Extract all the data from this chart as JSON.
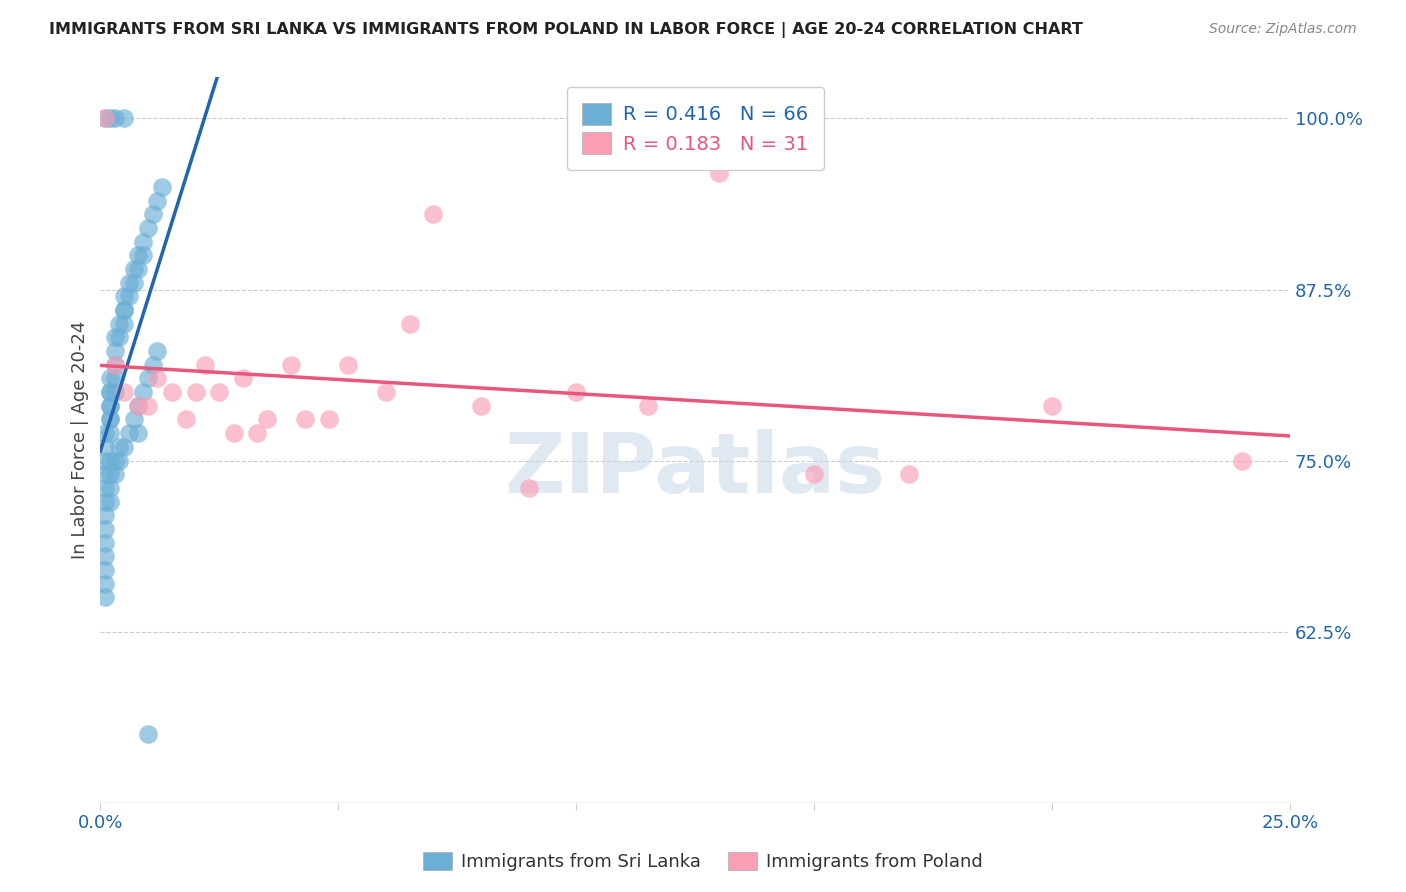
{
  "title": "IMMIGRANTS FROM SRI LANKA VS IMMIGRANTS FROM POLAND IN LABOR FORCE | AGE 20-24 CORRELATION CHART",
  "source": "Source: ZipAtlas.com",
  "xlabel": "",
  "ylabel": "In Labor Force | Age 20-24",
  "xlim": [
    0.0,
    0.25
  ],
  "ylim": [
    0.5,
    1.03
  ],
  "xticks": [
    0.0,
    0.05,
    0.1,
    0.15,
    0.2,
    0.25
  ],
  "xticklabels": [
    "0.0%",
    "",
    "",
    "",
    "",
    "25.0%"
  ],
  "yticks_right": [
    0.625,
    0.75,
    0.875,
    1.0
  ],
  "ytick_right_labels": [
    "62.5%",
    "75.0%",
    "87.5%",
    "100.0%"
  ],
  "sri_lanka_R": 0.416,
  "sri_lanka_N": 66,
  "poland_R": 0.183,
  "poland_N": 31,
  "sri_lanka_color": "#6baed6",
  "poland_color": "#fa9fb5",
  "sri_lanka_color_edge": "#6baed6",
  "poland_color_edge": "#fa9fb5",
  "sri_lanka_line_color": "#2166ac",
  "poland_line_color": "#e8567c",
  "background_color": "#ffffff",
  "watermark_text": "ZIPatlas",
  "watermark_color": "#c8d8e8",
  "sri_lanka_x": [
    0.001,
    0.001,
    0.001,
    0.001,
    0.001,
    0.001,
    0.001,
    0.001,
    0.001,
    0.001,
    0.001,
    0.001,
    0.001,
    0.002,
    0.002,
    0.002,
    0.002,
    0.002,
    0.002,
    0.002,
    0.002,
    0.002,
    0.002,
    0.002,
    0.002,
    0.003,
    0.003,
    0.003,
    0.003,
    0.003,
    0.003,
    0.003,
    0.004,
    0.004,
    0.004,
    0.004,
    0.005,
    0.005,
    0.005,
    0.005,
    0.005,
    0.006,
    0.006,
    0.006,
    0.007,
    0.007,
    0.007,
    0.008,
    0.008,
    0.008,
    0.009,
    0.009,
    0.009,
    0.01,
    0.01,
    0.011,
    0.011,
    0.012,
    0.012,
    0.013,
    0.005,
    0.003,
    0.002,
    0.001,
    0.008,
    0.01
  ],
  "sri_lanka_y": [
    0.75,
    0.74,
    0.73,
    0.72,
    0.71,
    0.7,
    0.69,
    0.68,
    0.67,
    0.66,
    0.65,
    0.76,
    0.77,
    0.77,
    0.78,
    0.78,
    0.79,
    0.79,
    0.8,
    0.8,
    0.81,
    0.75,
    0.74,
    0.73,
    0.72,
    0.8,
    0.81,
    0.82,
    0.83,
    0.84,
    0.75,
    0.74,
    0.84,
    0.85,
    0.76,
    0.75,
    0.85,
    0.86,
    0.86,
    0.87,
    0.76,
    0.87,
    0.88,
    0.77,
    0.88,
    0.89,
    0.78,
    0.89,
    0.9,
    0.79,
    0.9,
    0.91,
    0.8,
    0.92,
    0.81,
    0.93,
    0.82,
    0.94,
    0.83,
    0.95,
    1.0,
    1.0,
    1.0,
    1.0,
    0.77,
    0.55
  ],
  "poland_x": [
    0.001,
    0.003,
    0.005,
    0.008,
    0.01,
    0.012,
    0.015,
    0.018,
    0.02,
    0.022,
    0.025,
    0.028,
    0.03,
    0.033,
    0.035,
    0.04,
    0.043,
    0.048,
    0.052,
    0.06,
    0.065,
    0.07,
    0.08,
    0.09,
    0.1,
    0.115,
    0.13,
    0.15,
    0.17,
    0.2,
    0.24
  ],
  "poland_y": [
    1.0,
    0.82,
    0.8,
    0.79,
    0.79,
    0.81,
    0.8,
    0.78,
    0.8,
    0.82,
    0.8,
    0.77,
    0.81,
    0.77,
    0.78,
    0.82,
    0.78,
    0.78,
    0.82,
    0.8,
    0.85,
    0.93,
    0.79,
    0.73,
    0.8,
    0.79,
    0.96,
    0.74,
    0.74,
    0.79,
    0.75
  ]
}
